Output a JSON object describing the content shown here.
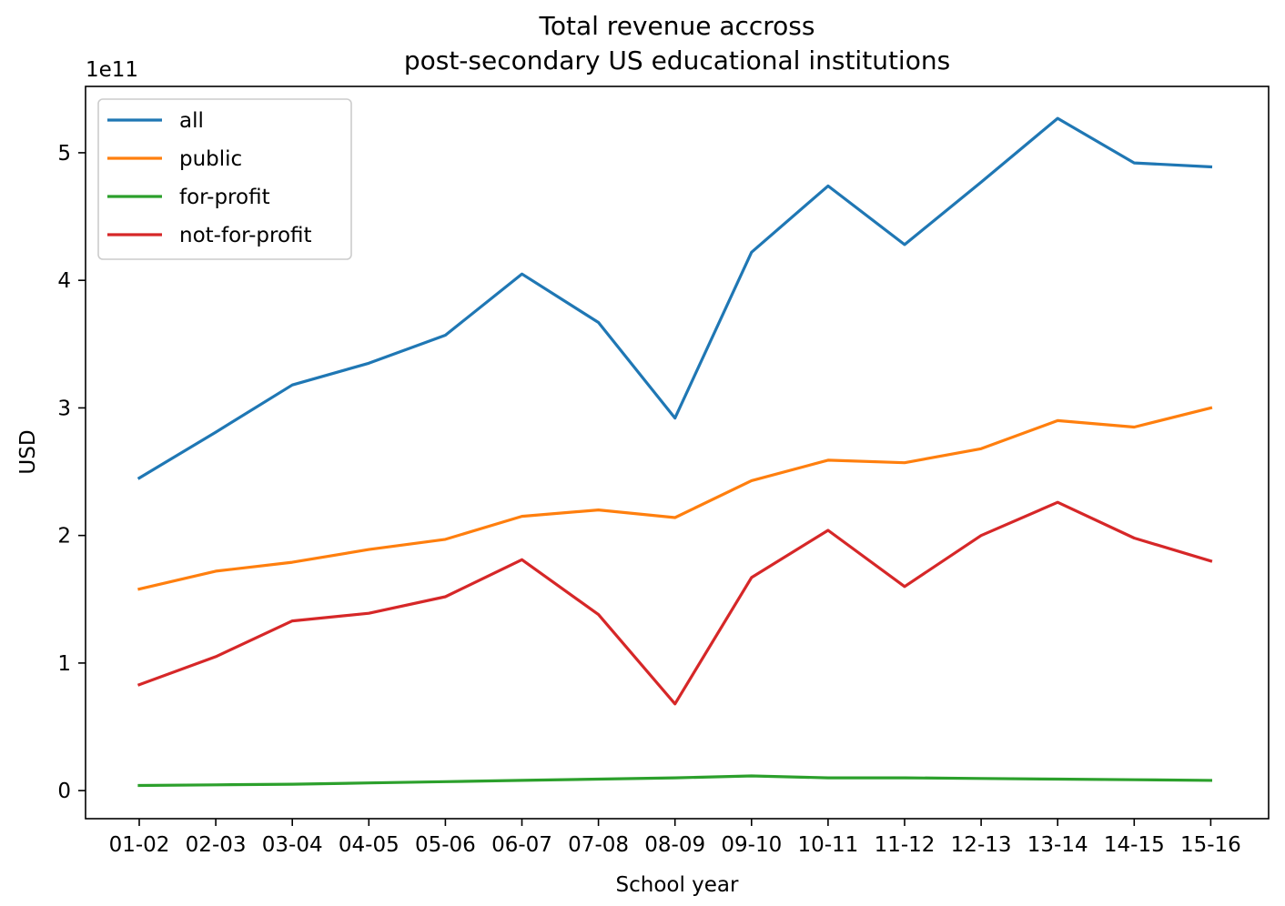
{
  "chart_data": {
    "type": "line",
    "title": [
      "Total revenue accross",
      "post-secondary US educational institutions"
    ],
    "xlabel": "School year",
    "ylabel": "USD",
    "y_offset_label": "1e11",
    "y_scale": 100000000000,
    "categories": [
      "01-02",
      "02-03",
      "03-04",
      "04-05",
      "05-06",
      "06-07",
      "07-08",
      "08-09",
      "09-10",
      "10-11",
      "11-12",
      "12-13",
      "13-14",
      "14-15",
      "15-16"
    ],
    "ylim": [
      -0.22,
      5.52
    ],
    "yticks": [
      0,
      1,
      2,
      3,
      4,
      5
    ],
    "ytick_labels": [
      "0",
      "1",
      "2",
      "3",
      "4",
      "5"
    ],
    "grid": false,
    "legend_position": "top-left",
    "series": [
      {
        "name": "all",
        "color": "#1f77b4",
        "values": [
          2.45,
          2.81,
          3.18,
          3.35,
          3.57,
          4.05,
          3.67,
          2.92,
          4.22,
          4.74,
          4.28,
          4.77,
          5.27,
          4.92,
          4.89
        ]
      },
      {
        "name": "public",
        "color": "#ff7f0e",
        "values": [
          1.58,
          1.72,
          1.79,
          1.89,
          1.97,
          2.15,
          2.2,
          2.14,
          2.43,
          2.59,
          2.57,
          2.68,
          2.9,
          2.85,
          3.0
        ]
      },
      {
        "name": "for-profit",
        "color": "#2ca02c",
        "values": [
          0.04,
          0.045,
          0.05,
          0.06,
          0.07,
          0.08,
          0.09,
          0.1,
          0.115,
          0.1,
          0.1,
          0.095,
          0.09,
          0.085,
          0.08
        ]
      },
      {
        "name": "not-for-profit",
        "color": "#d62728",
        "values": [
          0.83,
          1.05,
          1.33,
          1.39,
          1.52,
          1.81,
          1.38,
          0.68,
          1.67,
          2.04,
          1.6,
          2.0,
          2.26,
          1.98,
          1.8
        ]
      }
    ]
  }
}
